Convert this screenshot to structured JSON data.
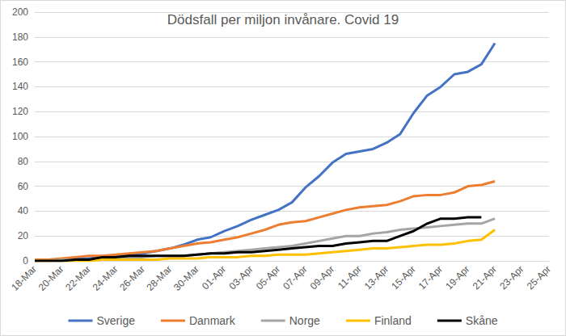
{
  "chart_data": {
    "type": "line",
    "title": "Dödsfall per miljon invånare. Covid 19",
    "categories": [
      "18-Mar",
      null,
      "20-Mar",
      null,
      "22-Mar",
      null,
      "24-Mar",
      null,
      "26-Mar",
      null,
      "28-Mar",
      null,
      "30-Mar",
      null,
      "01-Apr",
      null,
      "03-Apr",
      null,
      "05-Apr",
      null,
      "07-Apr",
      null,
      "09-Apr",
      null,
      "11-Apr",
      null,
      "13-Apr",
      null,
      "15-Apr",
      null,
      "17-Apr",
      null,
      "19-Apr",
      null,
      "21-Apr",
      null,
      "23-Apr",
      null,
      "25-Apr"
    ],
    "series": [
      {
        "name": "Sverige",
        "color": "#4472c4",
        "values": [
          1,
          1,
          1,
          2,
          2,
          3,
          4,
          5,
          6,
          8,
          10,
          13,
          17,
          19,
          24,
          28,
          33,
          37,
          41,
          47,
          59,
          68,
          79,
          86,
          88,
          90,
          95,
          102,
          119,
          133,
          140,
          150,
          152,
          158,
          175,
          null,
          null,
          null,
          null
        ]
      },
      {
        "name": "Danmark",
        "color": "#ed7d31",
        "values": [
          1,
          1,
          2,
          3,
          4,
          4,
          5,
          6,
          7,
          8,
          10,
          12,
          14,
          15,
          17,
          19,
          22,
          25,
          29,
          31,
          32,
          35,
          38,
          41,
          43,
          44,
          45,
          48,
          52,
          53,
          53,
          55,
          60,
          61,
          64,
          null,
          null,
          null,
          null
        ]
      },
      {
        "name": "Norge",
        "color": "#a5a5a5",
        "values": [
          0,
          0,
          1,
          1,
          1,
          2,
          3,
          3,
          3,
          4,
          4,
          4,
          5,
          6,
          7,
          8,
          9,
          10,
          11,
          12,
          14,
          16,
          18,
          20,
          20,
          22,
          23,
          25,
          26,
          27,
          28,
          29,
          30,
          30,
          34,
          null,
          null,
          null,
          null
        ]
      },
      {
        "name": "Finland",
        "color": "#ffc000",
        "values": [
          0,
          0,
          0,
          0,
          0,
          1,
          1,
          1,
          1,
          1,
          2,
          2,
          2,
          3,
          3,
          3,
          4,
          4,
          5,
          5,
          5,
          6,
          7,
          8,
          9,
          10,
          10,
          11,
          12,
          13,
          13,
          14,
          16,
          17,
          25,
          null,
          null,
          null,
          null
        ]
      },
      {
        "name": "Skåne",
        "color": "#000000",
        "values": [
          0,
          0,
          0,
          1,
          1,
          3,
          3,
          4,
          4,
          4,
          4,
          4,
          5,
          6,
          6,
          7,
          7,
          8,
          9,
          10,
          11,
          12,
          12,
          14,
          15,
          16,
          16,
          20,
          24,
          30,
          34,
          34,
          35,
          35,
          null,
          null,
          null,
          null,
          null
        ]
      }
    ],
    "ylim": [
      0,
      200
    ],
    "yticks": [
      0,
      20,
      40,
      60,
      80,
      100,
      120,
      140,
      160,
      180,
      200
    ],
    "grid": true,
    "legend": "bottom"
  }
}
